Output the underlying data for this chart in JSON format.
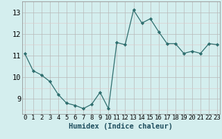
{
  "x": [
    0,
    1,
    2,
    3,
    4,
    5,
    6,
    7,
    8,
    9,
    10,
    11,
    12,
    13,
    14,
    15,
    16,
    17,
    18,
    19,
    20,
    21,
    22,
    23
  ],
  "y": [
    11.1,
    10.3,
    10.1,
    9.8,
    9.2,
    8.8,
    8.7,
    8.55,
    8.75,
    9.3,
    8.55,
    11.6,
    11.5,
    13.1,
    12.5,
    12.7,
    12.1,
    11.55,
    11.55,
    11.1,
    11.2,
    11.1,
    11.55,
    11.5
  ],
  "line_color": "#2e6e6e",
  "marker": "D",
  "marker_size": 2.2,
  "bg_color": "#d4eeee",
  "xlabel": "Humidex (Indice chaleur)",
  "xlabel_fontsize": 7.5,
  "ylim": [
    8.3,
    13.5
  ],
  "xlim": [
    -0.3,
    23.3
  ],
  "yticks": [
    9,
    10,
    11,
    12,
    13
  ],
  "xtick_labels": [
    "0",
    "1",
    "2",
    "3",
    "4",
    "5",
    "6",
    "7",
    "8",
    "9",
    "10",
    "11",
    "12",
    "13",
    "14",
    "15",
    "16",
    "17",
    "18",
    "19",
    "20",
    "21",
    "22",
    "23"
  ],
  "tick_fontsize": 6.5,
  "ytick_fontsize": 7.5
}
